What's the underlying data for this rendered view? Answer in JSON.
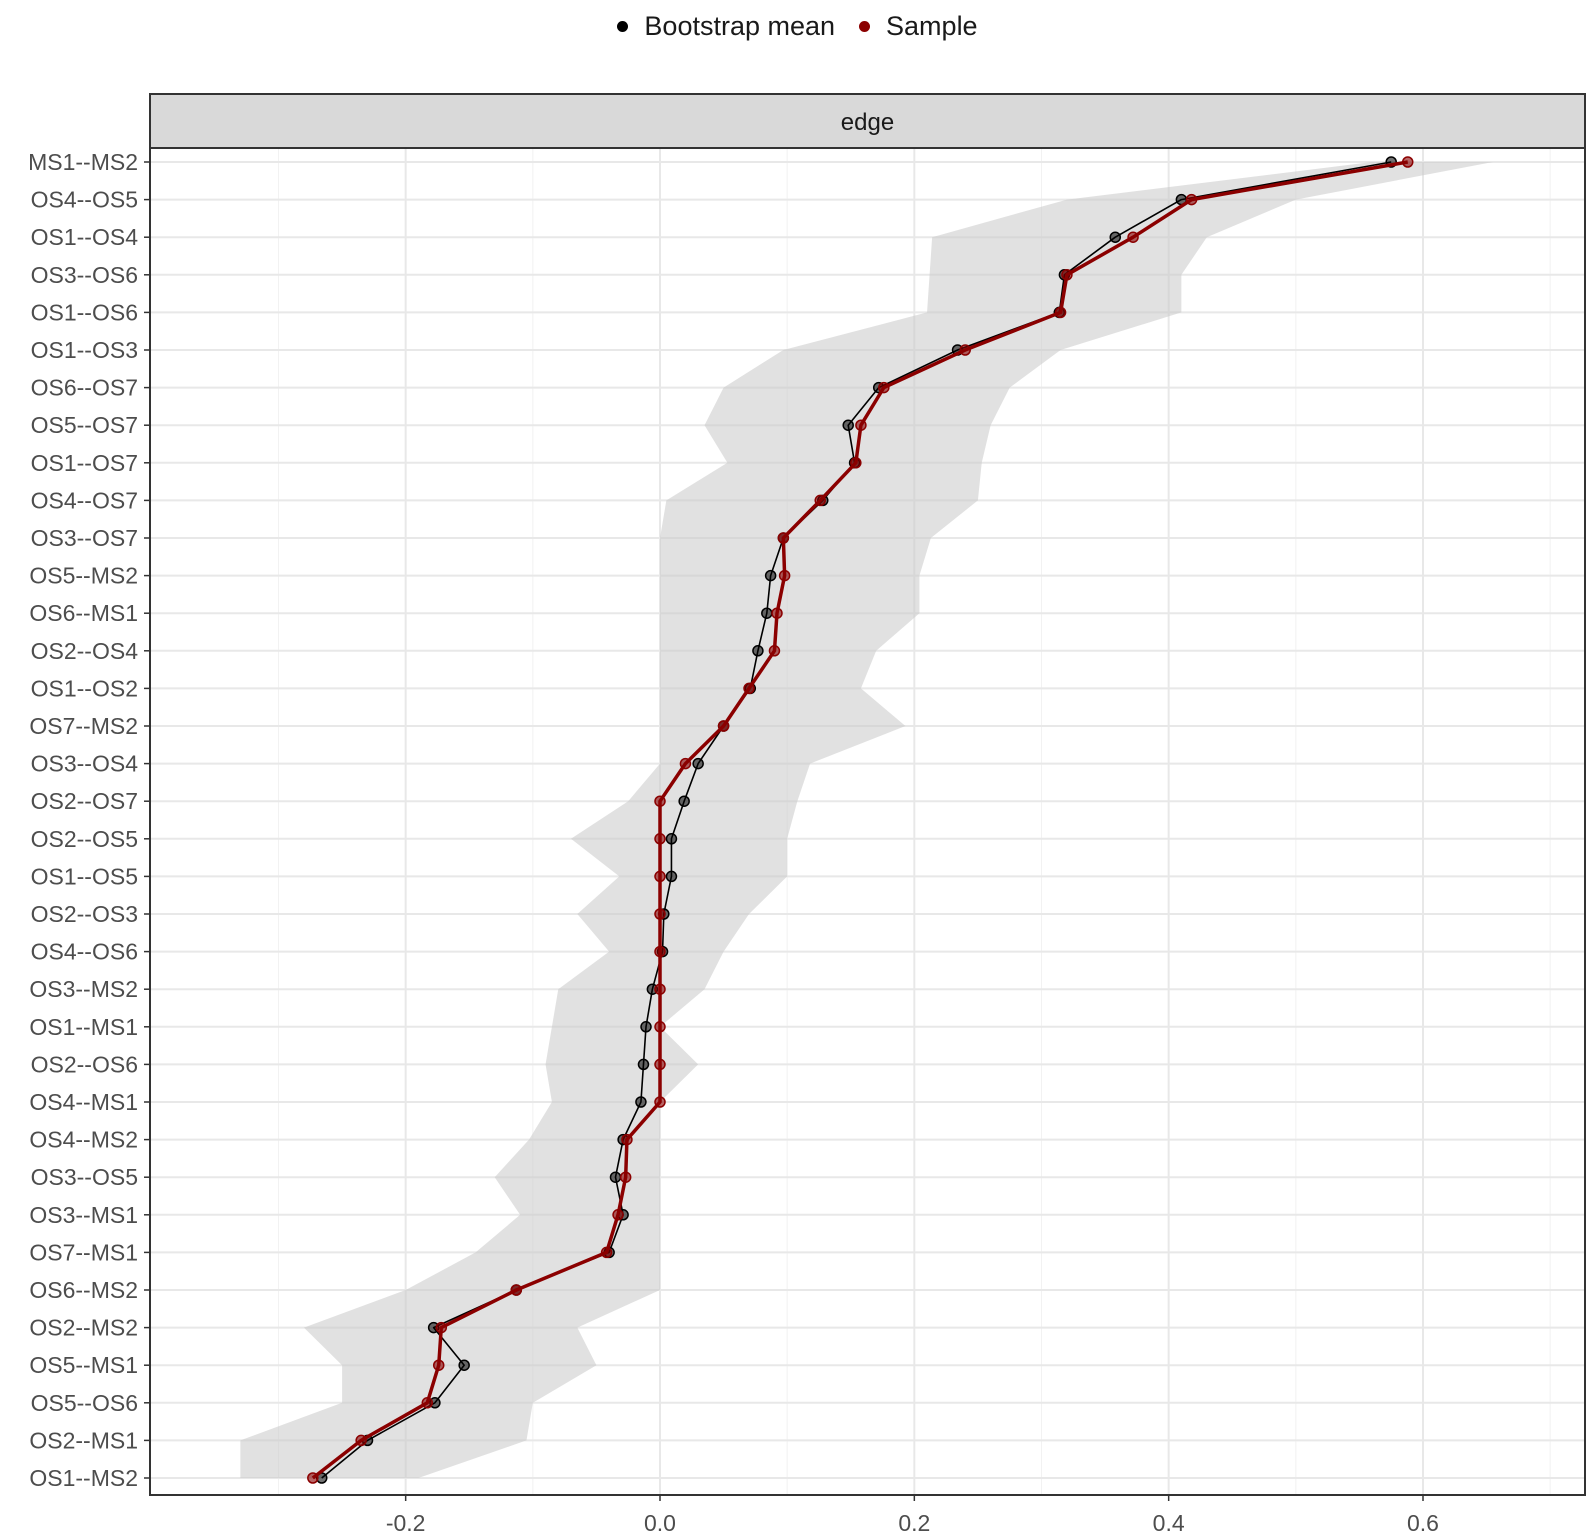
{
  "chart_data": {
    "type": "line",
    "facet_label": "edge",
    "legend": {
      "placement": "top",
      "items": [
        {
          "label": "Bootstrap mean",
          "color": "#000000"
        },
        {
          "label": "Sample",
          "color": "#8b0000"
        }
      ]
    },
    "xlim": [
      -0.385,
      0.7
    ],
    "x_ticks": [
      -0.2,
      0.0,
      0.2,
      0.4,
      0.6
    ],
    "x_tick_labels": [
      "-0.2",
      "0.0",
      "0.2",
      "0.4",
      "0.6"
    ],
    "categories": [
      "MS1--MS2",
      "OS4--OS5",
      "OS1--OS4",
      "OS3--OS6",
      "OS1--OS6",
      "OS1--OS3",
      "OS6--OS7",
      "OS5--OS7",
      "OS1--OS7",
      "OS4--OS7",
      "OS3--OS7",
      "OS5--MS2",
      "OS6--MS1",
      "OS2--OS4",
      "OS1--OS2",
      "OS7--MS2",
      "OS3--OS4",
      "OS2--OS7",
      "OS2--OS5",
      "OS1--OS5",
      "OS2--OS3",
      "OS4--OS6",
      "OS3--MS2",
      "OS1--MS1",
      "OS2--OS6",
      "OS4--MS1",
      "OS4--MS2",
      "OS3--OS5",
      "OS3--MS1",
      "OS7--MS1",
      "OS6--MS2",
      "OS2--MS2",
      "OS5--MS1",
      "OS5--OS6",
      "OS2--MS1",
      "OS1--MS2"
    ],
    "series": [
      {
        "name": "Bootstrap mean",
        "color": "#000000",
        "values": [
          0.575,
          0.41,
          0.358,
          0.318,
          0.314,
          0.234,
          0.172,
          0.148,
          0.153,
          0.128,
          0.097,
          0.087,
          0.084,
          0.077,
          0.071,
          0.05,
          0.03,
          0.019,
          0.009,
          0.009,
          0.003,
          0.002,
          -0.006,
          -0.011,
          -0.013,
          -0.015,
          -0.029,
          -0.035,
          -0.029,
          -0.04,
          -0.113,
          -0.178,
          -0.154,
          -0.177,
          -0.23,
          -0.266
        ]
      },
      {
        "name": "Sample",
        "color": "#8b0000",
        "values": [
          0.588,
          0.418,
          0.372,
          0.32,
          0.315,
          0.24,
          0.176,
          0.158,
          0.154,
          0.126,
          0.097,
          0.098,
          0.092,
          0.09,
          0.07,
          0.05,
          0.02,
          0.0,
          0.0,
          0.0,
          0.0,
          0.0,
          0.0,
          0.0,
          0.0,
          0.0,
          -0.026,
          -0.027,
          -0.033,
          -0.042,
          -0.113,
          -0.172,
          -0.174,
          -0.183,
          -0.235,
          -0.273
        ]
      }
    ],
    "ci_band": {
      "lower": [
        0.56,
        0.32,
        0.214,
        0.212,
        0.21,
        0.097,
        0.05,
        0.035,
        0.053,
        0.005,
        0.0,
        0.0,
        0.0,
        0.0,
        0.0,
        0.0,
        0.0,
        -0.025,
        -0.07,
        -0.032,
        -0.065,
        -0.04,
        -0.08,
        -0.085,
        -0.09,
        -0.085,
        -0.103,
        -0.13,
        -0.11,
        -0.145,
        -0.2,
        -0.28,
        -0.25,
        -0.25,
        -0.33,
        -0.33
      ],
      "upper": [
        0.655,
        0.5,
        0.43,
        0.41,
        0.41,
        0.315,
        0.275,
        0.26,
        0.253,
        0.25,
        0.213,
        0.204,
        0.204,
        0.17,
        0.158,
        0.193,
        0.118,
        0.108,
        0.1,
        0.1,
        0.07,
        0.05,
        0.035,
        0.0,
        0.03,
        0.0,
        0.0,
        0.0,
        0.0,
        0.0,
        0.0,
        -0.065,
        -0.05,
        -0.1,
        -0.105,
        -0.19
      ]
    },
    "grid": true,
    "xlabel": "",
    "ylabel": ""
  }
}
